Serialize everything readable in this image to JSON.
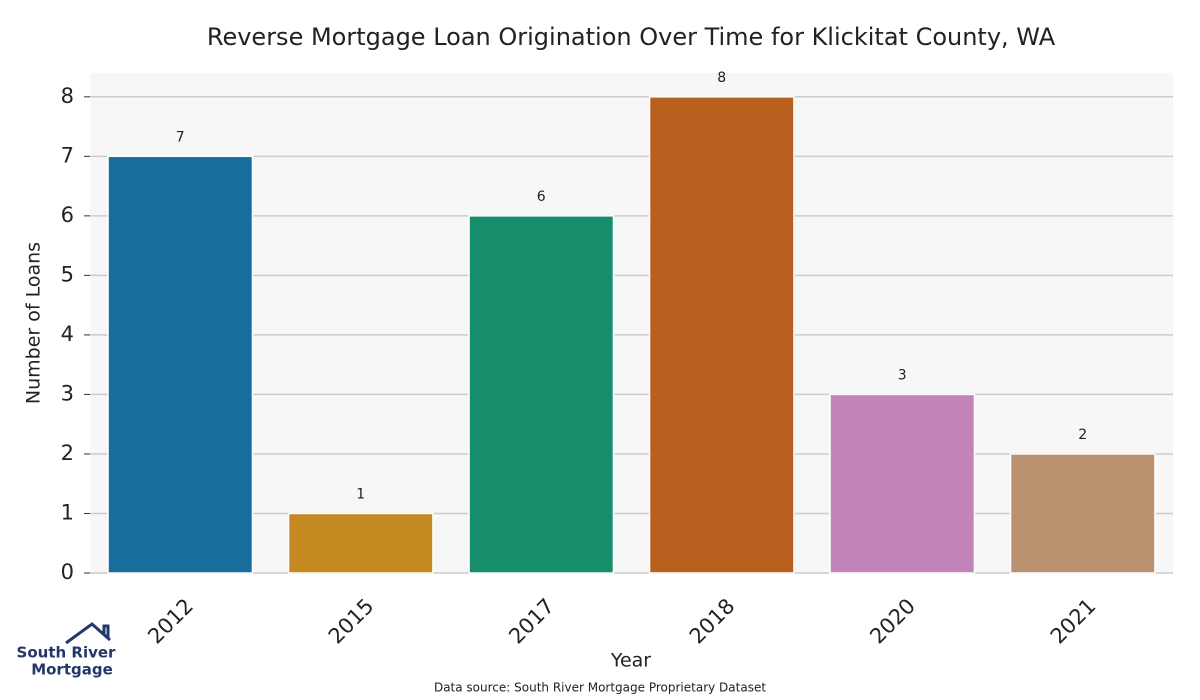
{
  "chart_data": {
    "type": "bar",
    "title": "Reverse Mortgage Loan Origination Over Time for Klickitat County, WA",
    "x_label": "Year",
    "y_label": "Number of Loans",
    "categories": [
      "2012",
      "2015",
      "2017",
      "2018",
      "2020",
      "2021"
    ],
    "values": [
      7,
      1,
      6,
      8,
      3,
      2
    ],
    "colors": [
      "#176d9c",
      "#c48a21",
      "#168d6b",
      "#b9601e",
      "#c183b8",
      "#bb9270"
    ],
    "ylim": [
      0,
      8.4
    ],
    "yticks": [
      0,
      1,
      2,
      3,
      4,
      5,
      6,
      7,
      8
    ],
    "grid": true,
    "source": "Data source: South River Mortgage Proprietary Dataset"
  },
  "logo": {
    "line1": "South River",
    "line2": "Mortgage"
  }
}
